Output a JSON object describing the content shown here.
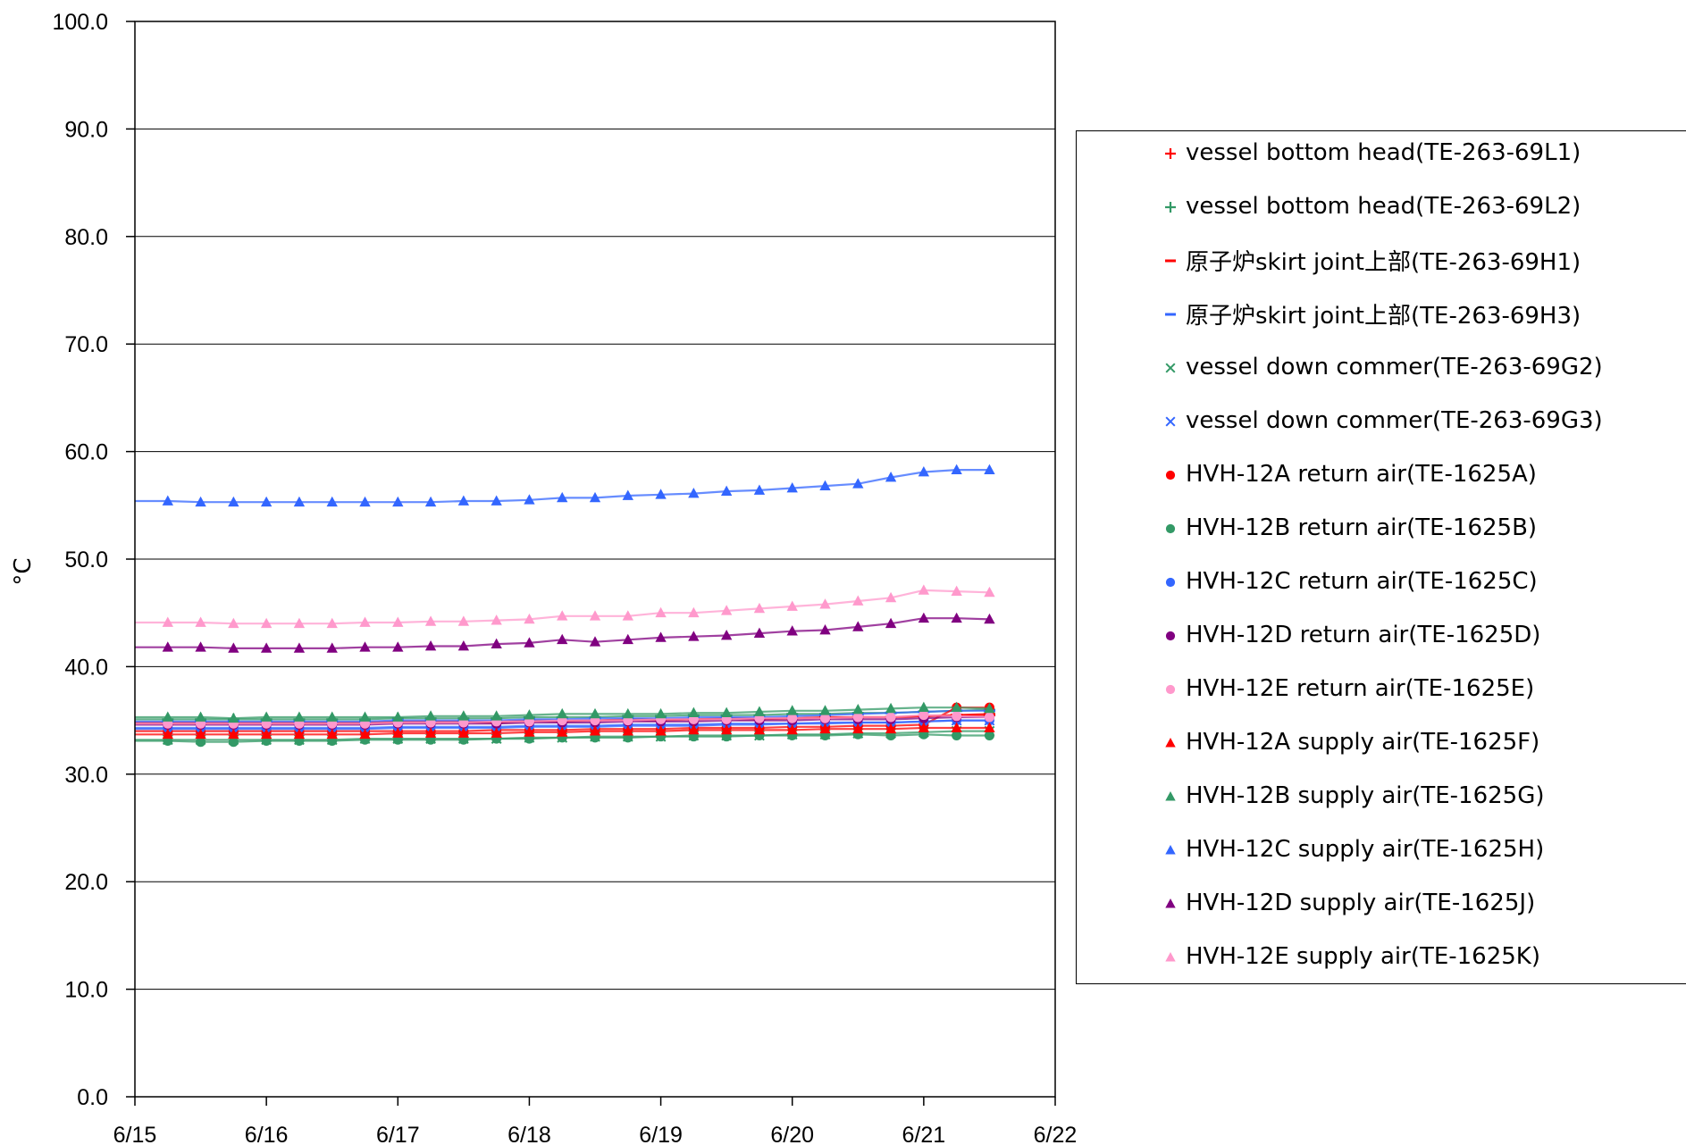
{
  "chart_data": {
    "type": "scatter",
    "ylabel": "°C",
    "xlabel": "",
    "ylim": [
      0,
      100
    ],
    "y_ticks": [
      "0.0",
      "10.0",
      "20.0",
      "30.0",
      "40.0",
      "50.0",
      "60.0",
      "70.0",
      "80.0",
      "90.0",
      "100.0"
    ],
    "xlim": [
      "6/15",
      "6/22"
    ],
    "x_ticks": [
      "6/15",
      "6/16",
      "6/17",
      "6/18",
      "6/19",
      "6/20",
      "6/21",
      "6/22"
    ],
    "grid": "horizontal",
    "legend_position": "right",
    "x": [
      "6/15 06:00",
      "6/15 12:00",
      "6/15 18:00",
      "6/16 00:00",
      "6/16 06:00",
      "6/16 12:00",
      "6/16 18:00",
      "6/17 00:00",
      "6/17 06:00",
      "6/17 12:00",
      "6/17 18:00",
      "6/18 00:00",
      "6/18 06:00",
      "6/18 12:00",
      "6/18 18:00",
      "6/19 00:00",
      "6/19 06:00",
      "6/19 12:00",
      "6/19 18:00",
      "6/20 00:00",
      "6/20 06:00",
      "6/20 12:00",
      "6/20 18:00",
      "6/21 00:00",
      "6/21 06:00",
      "6/21 12:00"
    ],
    "series": [
      {
        "name": "vessel bottom head(TE-263-69L1)",
        "color": "#ff0000",
        "marker": "plus",
        "values": [
          34.8,
          34.8,
          34.8,
          34.8,
          34.8,
          34.8,
          34.8,
          34.9,
          34.9,
          34.9,
          34.9,
          35.0,
          35.0,
          35.0,
          35.1,
          35.1,
          35.1,
          35.2,
          35.2,
          35.2,
          35.3,
          35.3,
          35.3,
          35.4,
          35.5,
          35.6
        ]
      },
      {
        "name": "vessel bottom head(TE-263-69L2)",
        "color": "#339966",
        "marker": "plus",
        "values": [
          35.1,
          35.1,
          35.1,
          35.1,
          35.1,
          35.1,
          35.1,
          35.2,
          35.2,
          35.2,
          35.2,
          35.3,
          35.3,
          35.3,
          35.4,
          35.4,
          35.5,
          35.5,
          35.5,
          35.6,
          35.6,
          35.7,
          35.7,
          35.8,
          35.9,
          36.0
        ]
      },
      {
        "name": "原子炉skirt joint上部(TE-263-69H1)",
        "color": "#ff0000",
        "marker": "dash",
        "values": [
          34.7,
          34.7,
          34.7,
          34.7,
          34.7,
          34.7,
          34.7,
          34.8,
          34.8,
          34.8,
          34.8,
          34.9,
          34.9,
          35.0,
          35.0,
          35.0,
          35.1,
          35.1,
          35.1,
          35.2,
          35.2,
          35.3,
          35.3,
          35.4,
          35.5,
          35.5
        ]
      },
      {
        "name": "原子炉skirt joint上部(TE-263-69H3)",
        "color": "#3366ff",
        "marker": "dash",
        "values": [
          34.9,
          34.9,
          34.9,
          34.9,
          34.9,
          34.9,
          34.9,
          35.0,
          35.0,
          35.0,
          35.0,
          35.1,
          35.1,
          35.2,
          35.2,
          35.2,
          35.3,
          35.3,
          35.3,
          35.4,
          35.5,
          35.6,
          35.7,
          35.8,
          35.9,
          35.9
        ]
      },
      {
        "name": "vessel down commer(TE-263-69G2)",
        "color": "#339966",
        "marker": "x",
        "values": [
          33.2,
          33.2,
          33.2,
          33.2,
          33.2,
          33.2,
          33.3,
          33.3,
          33.3,
          33.3,
          33.3,
          33.4,
          33.4,
          33.5,
          33.5,
          33.5,
          33.6,
          33.6,
          33.6,
          33.7,
          33.7,
          33.8,
          33.8,
          33.9,
          34.0,
          34.0
        ]
      },
      {
        "name": "vessel down commer(TE-263-69G3)",
        "color": "#3366ff",
        "marker": "x",
        "values": [
          34.2,
          34.2,
          34.2,
          34.2,
          34.2,
          34.2,
          34.2,
          34.3,
          34.3,
          34.3,
          34.3,
          34.4,
          34.4,
          34.4,
          34.5,
          34.5,
          34.5,
          34.6,
          34.6,
          34.7,
          34.7,
          34.8,
          34.8,
          34.9,
          35.0,
          35.0
        ]
      },
      {
        "name": "HVH-12A return air(TE-1625A)",
        "color": "#ff0000",
        "marker": "circle",
        "values": [
          34.0,
          34.0,
          34.0,
          34.0,
          34.0,
          34.0,
          34.0,
          34.0,
          34.0,
          34.0,
          34.1,
          34.1,
          34.1,
          34.2,
          34.2,
          34.2,
          34.3,
          34.3,
          34.3,
          34.4,
          34.4,
          34.5,
          34.5,
          34.6,
          36.2,
          36.2
        ]
      },
      {
        "name": "HVH-12B return air(TE-1625B)",
        "color": "#339966",
        "marker": "circle",
        "values": [
          33.1,
          33.0,
          33.0,
          33.1,
          33.1,
          33.1,
          33.2,
          33.2,
          33.2,
          33.2,
          33.3,
          33.3,
          33.4,
          33.4,
          33.4,
          33.5,
          33.5,
          33.5,
          33.6,
          33.6,
          33.6,
          33.7,
          33.6,
          33.7,
          33.6,
          33.6
        ]
      },
      {
        "name": "HVH-12C return air(TE-1625C)",
        "color": "#3366ff",
        "marker": "circle",
        "values": [
          34.3,
          34.3,
          34.3,
          34.3,
          34.3,
          34.3,
          34.3,
          34.4,
          34.4,
          34.4,
          34.4,
          34.5,
          34.5,
          34.5,
          34.6,
          34.6,
          34.6,
          34.7,
          34.7,
          34.7,
          34.8,
          34.8,
          34.8,
          34.9,
          35.0,
          35.0
        ]
      },
      {
        "name": "HVH-12D return air(TE-1625D)",
        "color": "#800080",
        "marker": "circle",
        "values": [
          34.6,
          34.6,
          34.6,
          34.6,
          34.6,
          34.6,
          34.6,
          34.7,
          34.7,
          34.7,
          34.7,
          34.8,
          34.8,
          34.8,
          34.9,
          34.9,
          34.9,
          35.0,
          35.0,
          35.0,
          35.1,
          35.1,
          35.1,
          35.2,
          35.3,
          35.3
        ]
      },
      {
        "name": "HVH-12E return air(TE-1625E)",
        "color": "#ff99cc",
        "marker": "circle",
        "values": [
          34.7,
          34.7,
          34.7,
          34.7,
          34.7,
          34.7,
          34.7,
          34.8,
          34.8,
          34.8,
          34.9,
          34.9,
          35.0,
          35.0,
          35.0,
          35.1,
          35.1,
          35.1,
          35.2,
          35.2,
          35.2,
          35.3,
          35.3,
          35.5,
          35.4,
          35.3
        ]
      },
      {
        "name": "HVH-12A supply air(TE-1625F)",
        "color": "#ff0000",
        "marker": "triangle",
        "values": [
          33.7,
          33.7,
          33.7,
          33.7,
          33.7,
          33.7,
          33.7,
          33.8,
          33.8,
          33.8,
          33.8,
          33.9,
          33.9,
          34.0,
          34.0,
          34.0,
          34.1,
          34.1,
          34.1,
          34.1,
          34.2,
          34.2,
          34.2,
          34.3,
          34.3,
          34.3
        ]
      },
      {
        "name": "HVH-12B supply air(TE-1625G)",
        "color": "#339966",
        "marker": "triangle",
        "values": [
          35.3,
          35.3,
          35.2,
          35.3,
          35.3,
          35.3,
          35.3,
          35.3,
          35.4,
          35.4,
          35.4,
          35.5,
          35.6,
          35.6,
          35.6,
          35.6,
          35.7,
          35.7,
          35.8,
          35.9,
          35.9,
          36.0,
          36.1,
          36.2,
          36.2,
          36.1
        ]
      },
      {
        "name": "HVH-12C supply air(TE-1625H)",
        "color": "#3366ff",
        "marker": "triangle",
        "values": [
          55.4,
          55.3,
          55.3,
          55.3,
          55.3,
          55.3,
          55.3,
          55.3,
          55.3,
          55.4,
          55.4,
          55.5,
          55.7,
          55.7,
          55.9,
          56.0,
          56.1,
          56.3,
          56.4,
          56.6,
          56.8,
          57.0,
          57.6,
          58.1,
          58.3,
          58.3
        ]
      },
      {
        "name": "HVH-12D supply air(TE-1625J)",
        "color": "#800080",
        "marker": "triangle",
        "values": [
          41.8,
          41.8,
          41.7,
          41.7,
          41.7,
          41.7,
          41.8,
          41.8,
          41.9,
          41.9,
          42.1,
          42.2,
          42.5,
          42.3,
          42.5,
          42.7,
          42.8,
          42.9,
          43.1,
          43.3,
          43.4,
          43.7,
          44.0,
          44.5,
          44.5,
          44.4
        ]
      },
      {
        "name": "HVH-12E supply air(TE-1625K)",
        "color": "#ff99cc",
        "marker": "triangle",
        "values": [
          44.1,
          44.1,
          44.0,
          44.0,
          44.0,
          44.0,
          44.1,
          44.1,
          44.2,
          44.2,
          44.3,
          44.4,
          44.7,
          44.7,
          44.7,
          45.0,
          45.0,
          45.2,
          45.4,
          45.6,
          45.8,
          46.1,
          46.4,
          47.1,
          47.0,
          46.9
        ]
      }
    ]
  }
}
